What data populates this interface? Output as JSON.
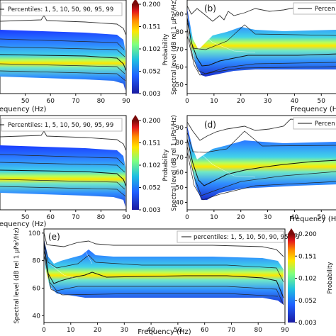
{
  "figure": {
    "panel_labels": [
      "(b)",
      "(d)",
      "(e)"
    ],
    "colorbar_label": "Probability",
    "colorbar_ticks": [
      "0.200",
      "0.151",
      "0.102",
      "0.052",
      "0.003"
    ],
    "colorbar_colors": [
      "#7a0a0a",
      "#e41a1c",
      "#ff8c00",
      "#ffe600",
      "#7fff7f",
      "#20c0e0",
      "#2060ff",
      "#1a1aa0"
    ],
    "xlabel": "Frequency (Hz)",
    "xlabel_cut": "requency (Hz)",
    "ylabel": "Spectral level (dB rel 1 µPa²/Hz)",
    "legend_top_left": "Percentiles: 1, 5, 10, 50, 90, 95, 99",
    "legend_top_right": "Percen",
    "legend_bottom": "percentiles: 1, 5, 10, 50, 90, 95, 99"
  },
  "chart_data": [
    {
      "type": "heatmap",
      "id": "top-left",
      "x_ticks": [
        50,
        60,
        70,
        80,
        90
      ],
      "xlim": [
        40,
        90
      ],
      "legend": "Percentiles: 1, 5, 10, 50, 90, 95, 99",
      "colorbar": {
        "label": "Probability",
        "min": 0.003,
        "max": 0.2
      }
    },
    {
      "type": "heatmap",
      "id": "b",
      "title": "(b)",
      "x_ticks": [
        0,
        10,
        20,
        30,
        40,
        50
      ],
      "xlim": [
        0,
        56
      ],
      "y_ticks": [
        50,
        60,
        70,
        80,
        90
      ],
      "ylim": [
        45,
        98
      ],
      "p50": [
        [
          0,
          85
        ],
        [
          2,
          72
        ],
        [
          4,
          64
        ],
        [
          5,
          62
        ],
        [
          7,
          63
        ],
        [
          10,
          66
        ],
        [
          15,
          68
        ],
        [
          20,
          70
        ],
        [
          25,
          70
        ],
        [
          30,
          70
        ],
        [
          40,
          70
        ],
        [
          56,
          70
        ]
      ],
      "p99": [
        [
          0,
          96
        ],
        [
          4,
          92
        ],
        [
          8,
          96
        ],
        [
          10,
          93
        ],
        [
          15,
          95
        ],
        [
          20,
          97
        ],
        [
          25,
          97
        ],
        [
          30,
          97
        ],
        [
          40,
          98
        ],
        [
          56,
          98
        ]
      ]
    },
    {
      "type": "heatmap",
      "id": "mid-left",
      "x_ticks": [
        50,
        60,
        70,
        80,
        90
      ],
      "xlim": [
        40,
        90
      ],
      "legend": "Percentiles: 1, 5, 10, 50, 90, 95, 99",
      "colorbar": {
        "label": "Probability",
        "min": 0.003,
        "max": 0.2
      }
    },
    {
      "type": "heatmap",
      "id": "d",
      "title": "(d)",
      "x_ticks": [
        0,
        10,
        20,
        30,
        40,
        50
      ],
      "xlim": [
        0,
        56
      ],
      "y_ticks": [
        40,
        50,
        60,
        70,
        80,
        90
      ],
      "ylim": [
        35,
        98
      ],
      "p50": [
        [
          0,
          80
        ],
        [
          3,
          62
        ],
        [
          5,
          58
        ],
        [
          8,
          62
        ],
        [
          12,
          65
        ],
        [
          20,
          67
        ],
        [
          30,
          68
        ],
        [
          40,
          70
        ],
        [
          56,
          72
        ]
      ],
      "p99": [
        [
          0,
          95
        ],
        [
          3,
          88
        ],
        [
          6,
          84
        ],
        [
          10,
          84
        ],
        [
          15,
          85
        ],
        [
          20,
          86
        ],
        [
          30,
          88
        ],
        [
          40,
          92
        ],
        [
          56,
          92
        ]
      ]
    },
    {
      "type": "heatmap",
      "id": "e",
      "title": "(e)",
      "xlabel": "Frequency (Hz)",
      "x_ticks": [
        0,
        10,
        20,
        30,
        40,
        50,
        60,
        70,
        80,
        90
      ],
      "xlim": [
        0,
        90
      ],
      "y_ticks": [
        40,
        60,
        80,
        100
      ],
      "ylim": [
        35,
        103
      ],
      "legend": "percentiles: 1, 5, 10, 50, 90, 95, 99",
      "colorbar": {
        "label": "Probability",
        "min": 0.003,
        "max": 0.2,
        "ticks": [
          0.003,
          0.052,
          0.102,
          0.151,
          0.2
        ]
      },
      "p50": [
        [
          0,
          92
        ],
        [
          2,
          68
        ],
        [
          4,
          62
        ],
        [
          6,
          64
        ],
        [
          10,
          67
        ],
        [
          15,
          70
        ],
        [
          20,
          71
        ],
        [
          25,
          68
        ],
        [
          30,
          67
        ],
        [
          40,
          68
        ],
        [
          50,
          69
        ],
        [
          60,
          69
        ],
        [
          70,
          68
        ],
        [
          80,
          67
        ],
        [
          86,
          65
        ],
        [
          90,
          52
        ]
      ],
      "p99": [
        [
          0,
          100
        ],
        [
          3,
          88
        ],
        [
          8,
          84
        ],
        [
          12,
          88
        ],
        [
          16,
          90
        ],
        [
          20,
          88
        ],
        [
          25,
          88
        ],
        [
          30,
          87
        ],
        [
          40,
          87
        ],
        [
          50,
          87
        ],
        [
          60,
          87
        ],
        [
          70,
          86
        ],
        [
          80,
          85
        ],
        [
          86,
          84
        ],
        [
          90,
          80
        ]
      ]
    }
  ]
}
